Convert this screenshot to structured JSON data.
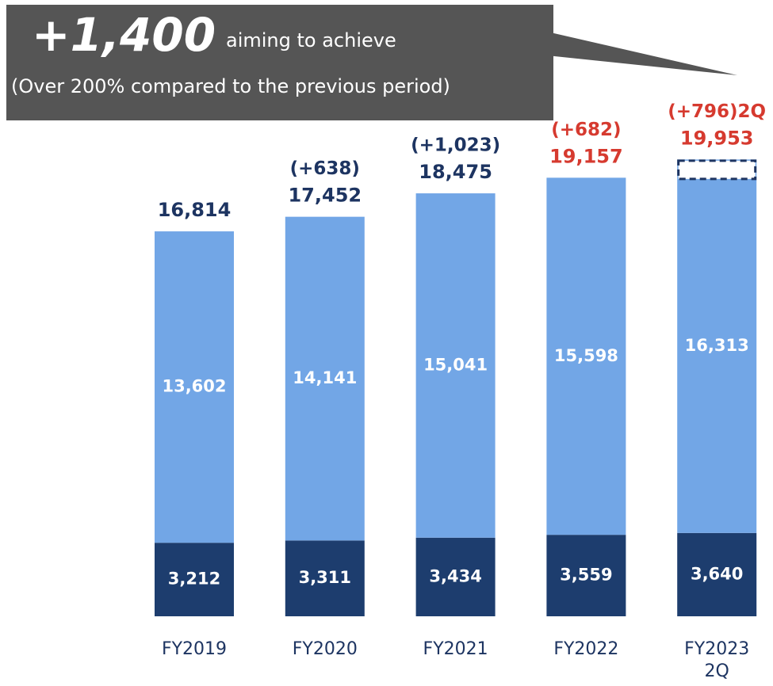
{
  "chart_data": {
    "type": "stacked_bar",
    "categories": [
      "FY2019",
      "FY2020",
      "FY2021",
      "FY2022",
      "FY2023 2Q"
    ],
    "series": [
      {
        "color": "#1d3d6e",
        "values": [
          3212,
          3311,
          3434,
          3559,
          3640
        ],
        "value_labels": [
          "3,212",
          "3,311",
          "3,434",
          "3,559",
          "3,640"
        ]
      },
      {
        "color": "#72a6e6",
        "values": [
          13602,
          14141,
          15041,
          15598,
          16313
        ],
        "value_labels": [
          "13,602",
          "14,141",
          "15,041",
          "15,598",
          "16,313"
        ]
      }
    ],
    "total_labels": [
      "16,814",
      "17,452",
      "18,475",
      "19,157",
      "19,953"
    ],
    "increase_labels": [
      null,
      "(+638)",
      "(+1,023)",
      "(+682)",
      "(+796)2Q"
    ],
    "label_colors": [
      "#1d3461",
      "#1d3461",
      "#1d3461",
      "#d63a2f",
      "#d63a2f"
    ],
    "ylim": [
      0,
      20000
    ],
    "callout": {
      "headline": "+1,400",
      "text": "aiming to achieve",
      "note": "(Over 200% compared to the previous period)"
    }
  }
}
